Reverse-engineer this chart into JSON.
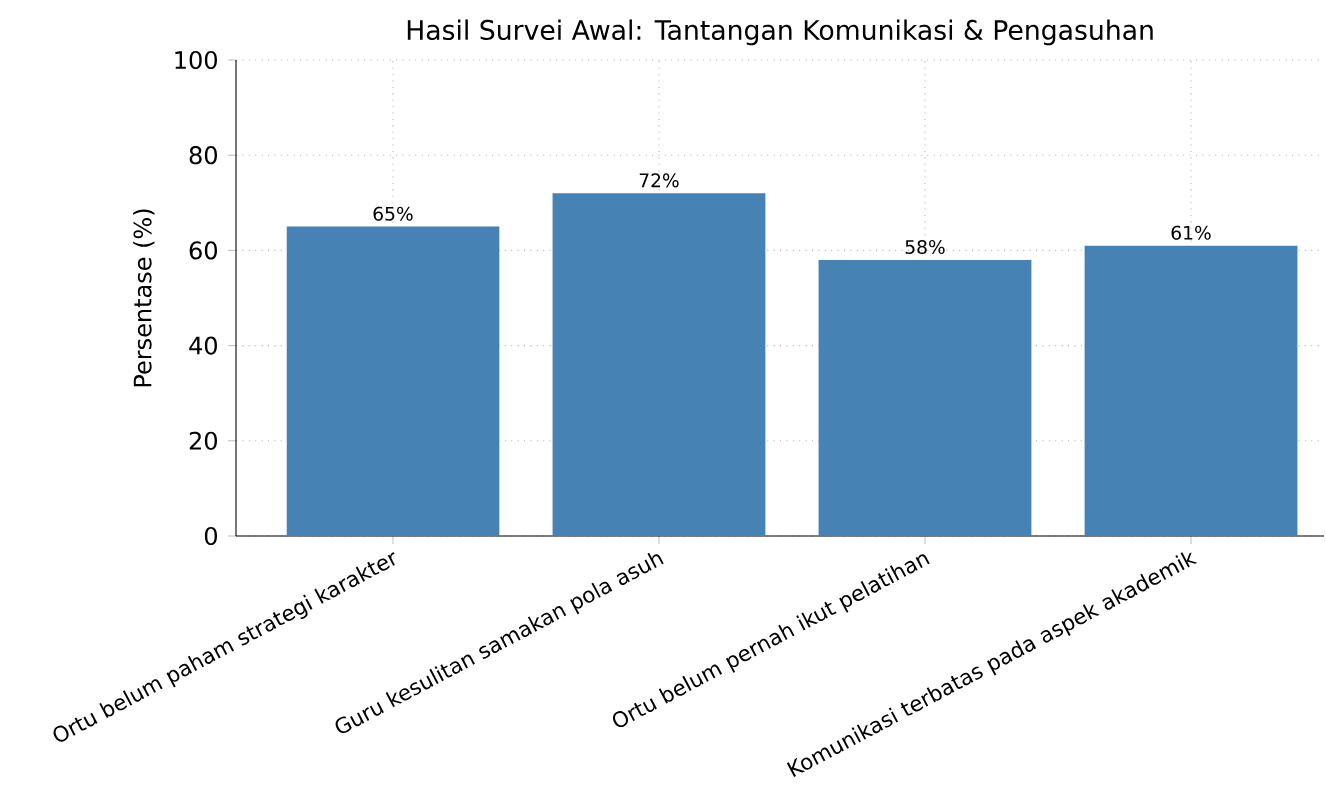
{
  "chart_data": {
    "type": "bar",
    "title": "Hasil Survei Awal: Tantangan Komunikasi & Pengasuhan",
    "ylabel": "Persentase (%)",
    "categories": [
      "Ortu belum paham strategi karakter",
      "Guru kesulitan samakan pola asuh",
      "Ortu belum pernah ikut pelatihan",
      "Komunikasi terbatas pada aspek akademik"
    ],
    "values": [
      65,
      72,
      58,
      61
    ],
    "value_labels": [
      "65%",
      "72%",
      "58%",
      "61%"
    ],
    "color": "#4682b4",
    "ylim": [
      0,
      100
    ],
    "yticks": [
      0,
      20,
      40,
      60,
      80,
      100
    ],
    "grid": true
  }
}
